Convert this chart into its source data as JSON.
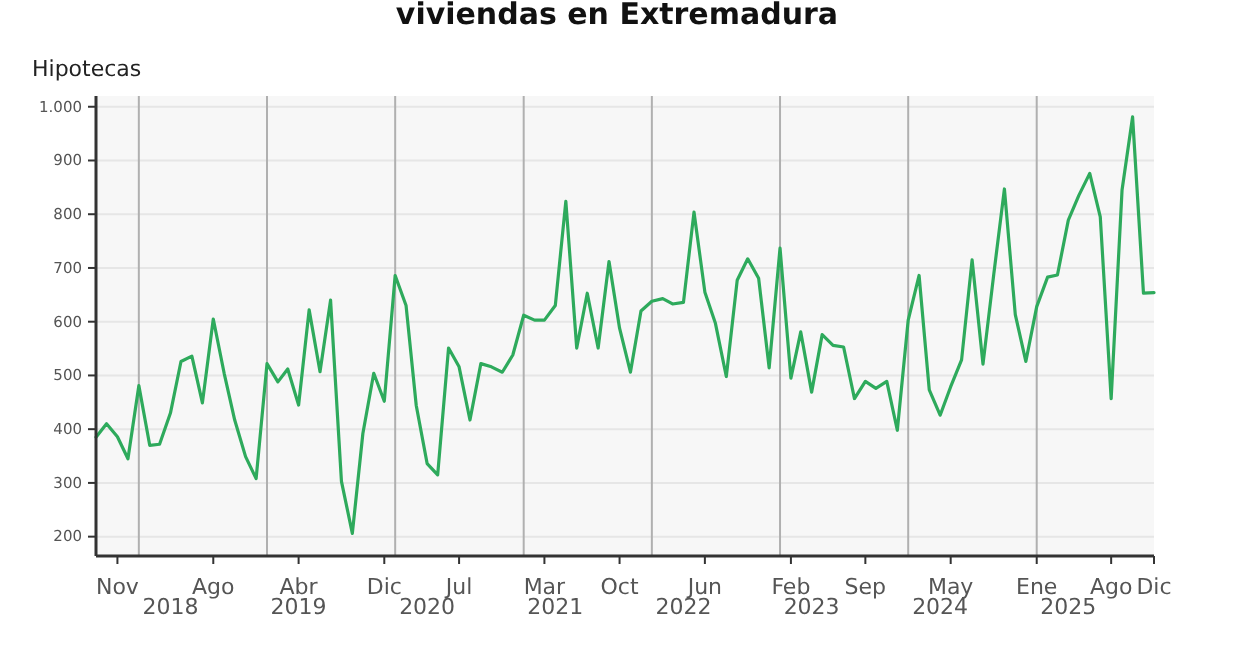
{
  "chart_data": {
    "type": "line",
    "title": "viviendas en Extremadura",
    "ylabel": "Hipotecas",
    "x": [
      "2017-09",
      "2017-10",
      "2017-11",
      "2017-12",
      "2018-01",
      "2018-02",
      "2018-03",
      "2018-04",
      "2018-05",
      "2018-06",
      "2018-07",
      "2018-08",
      "2018-09",
      "2018-10",
      "2018-11",
      "2018-12",
      "2019-01",
      "2019-02",
      "2019-03",
      "2019-04",
      "2019-05",
      "2019-06",
      "2019-07",
      "2019-08",
      "2019-09",
      "2019-10",
      "2019-11",
      "2019-12",
      "2020-01",
      "2020-02",
      "2020-03",
      "2020-04",
      "2020-05",
      "2020-06",
      "2020-07",
      "2020-08",
      "2020-09",
      "2020-10",
      "2020-11",
      "2020-12",
      "2021-01",
      "2021-02",
      "2021-03",
      "2021-04",
      "2021-05",
      "2021-06",
      "2021-07",
      "2021-08",
      "2021-09",
      "2021-10",
      "2021-11",
      "2021-12",
      "2022-01",
      "2022-02",
      "2022-03",
      "2022-04",
      "2022-05",
      "2022-06",
      "2022-07",
      "2022-08",
      "2022-09",
      "2022-10",
      "2022-11",
      "2022-12",
      "2023-01",
      "2023-02",
      "2023-03",
      "2023-04",
      "2023-05",
      "2023-06",
      "2023-07",
      "2023-08",
      "2023-09",
      "2023-10",
      "2023-11",
      "2023-12",
      "2024-01",
      "2024-02",
      "2024-03",
      "2024-04",
      "2024-05",
      "2024-06",
      "2024-07",
      "2024-08",
      "2024-09",
      "2024-10",
      "2024-11",
      "2024-12",
      "2025-01",
      "2025-02",
      "2025-03",
      "2025-04",
      "2025-05",
      "2025-06",
      "2025-07",
      "2025-08",
      "2025-09",
      "2025-10",
      "2025-11",
      "2025-12"
    ],
    "series": [
      {
        "color": "#2eaa5c",
        "values": [
          385,
          410,
          386,
          345,
          481,
          370,
          372,
          430,
          526,
          536,
          449,
          605,
          504,
          417,
          349,
          308,
          522,
          488,
          512,
          445,
          622,
          507,
          640,
          303,
          206,
          392,
          504,
          452,
          686,
          630,
          444,
          336,
          315,
          551,
          516,
          417,
          522,
          516,
          506,
          538,
          612,
          603,
          603,
          630,
          824,
          551,
          653,
          551,
          712,
          588,
          506,
          620,
          638,
          643,
          633,
          636,
          804,
          655,
          597,
          498,
          677,
          717,
          681,
          514,
          737,
          495,
          581,
          469,
          576,
          556,
          553,
          457,
          489,
          476,
          489,
          398,
          603,
          686,
          473,
          426,
          479,
          529,
          715,
          521,
          690,
          847,
          613,
          526,
          628,
          683,
          687,
          789,
          835,
          876,
          795,
          457,
          845,
          981,
          653,
          654
        ]
      }
    ],
    "xlim": [
      "2017-09",
      "2025-12"
    ],
    "xticks": [
      {
        "value": "2017-11",
        "label": "Nov"
      },
      {
        "value": "2018-08",
        "label": "Ago"
      },
      {
        "value": "2019-04",
        "label": "Abr"
      },
      {
        "value": "2019-12",
        "label": "Dic"
      },
      {
        "value": "2020-07",
        "label": "Jul"
      },
      {
        "value": "2021-03",
        "label": "Mar"
      },
      {
        "value": "2021-10",
        "label": "Oct"
      },
      {
        "value": "2022-06",
        "label": "Jun"
      },
      {
        "value": "2023-02",
        "label": "Feb"
      },
      {
        "value": "2023-09",
        "label": "Sep"
      },
      {
        "value": "2024-05",
        "label": "May"
      },
      {
        "value": "2025-01",
        "label": "Ene"
      },
      {
        "value": "2025-08",
        "label": "Ago"
      },
      {
        "value": "2025-12",
        "label": "Dic"
      }
    ],
    "x2lim": [
      "2017-09",
      "2025-12"
    ],
    "x2ticks": [
      {
        "value": "2018-04",
        "label": "2018"
      },
      {
        "value": "2019-04",
        "label": "2019"
      },
      {
        "value": "2020-04",
        "label": "2020"
      },
      {
        "value": "2021-04",
        "label": "2021"
      },
      {
        "value": "2022-04",
        "label": "2022"
      },
      {
        "value": "2023-04",
        "label": "2023"
      },
      {
        "value": "2024-04",
        "label": "2024"
      },
      {
        "value": "2025-04",
        "label": "2025"
      }
    ],
    "ylim": [
      164,
      1020
    ],
    "yticks": [
      200,
      300,
      400,
      500,
      600,
      700,
      800,
      900,
      {
        "value": 1000,
        "label": "1.000"
      }
    ],
    "grid": "y",
    "marker": "none",
    "line_style": "solid",
    "ref_lines": [
      {
        "axis": "x",
        "value": "2018-01",
        "color": "#b0b0b0"
      },
      {
        "axis": "x",
        "value": "2019-01",
        "color": "#b0b0b0"
      },
      {
        "axis": "x",
        "value": "2020-01",
        "color": "#b0b0b0"
      },
      {
        "axis": "x",
        "value": "2021-01",
        "color": "#b0b0b0"
      },
      {
        "axis": "x",
        "value": "2022-01",
        "color": "#b0b0b0"
      },
      {
        "axis": "x",
        "value": "2023-01",
        "color": "#b0b0b0"
      },
      {
        "axis": "x",
        "value": "2024-01",
        "color": "#b0b0b0"
      },
      {
        "axis": "x",
        "value": "2025-01",
        "color": "#b0b0b0"
      }
    ]
  }
}
